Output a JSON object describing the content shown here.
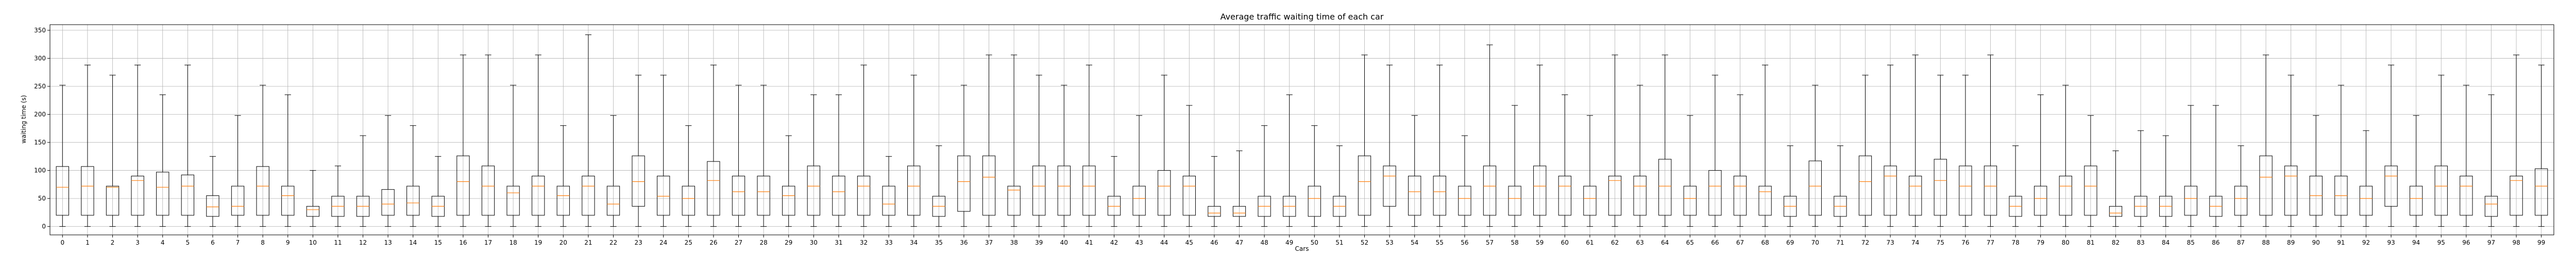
{
  "chart_data": {
    "type": "boxplot",
    "title": "Average traffic waiting time of each car",
    "xlabel": "Cars",
    "ylabel": "waiting time (s)",
    "ylim": [
      -15,
      360
    ],
    "yticks": [
      0,
      50,
      100,
      150,
      200,
      250,
      300,
      350
    ],
    "grid": true,
    "colors": {
      "box": "#000000",
      "median": "#ff7f0e",
      "grid": "#b0b0b0"
    },
    "categories": [
      "0",
      "1",
      "2",
      "3",
      "4",
      "5",
      "6",
      "7",
      "8",
      "9",
      "10",
      "11",
      "12",
      "13",
      "14",
      "15",
      "16",
      "17",
      "18",
      "19",
      "20",
      "21",
      "22",
      "23",
      "24",
      "25",
      "26",
      "27",
      "28",
      "29",
      "30",
      "31",
      "32",
      "33",
      "34",
      "35",
      "36",
      "37",
      "38",
      "39",
      "40",
      "41",
      "42",
      "43",
      "44",
      "45",
      "46",
      "47",
      "48",
      "49",
      "50",
      "51",
      "52",
      "53",
      "54",
      "55",
      "56",
      "57",
      "58",
      "59",
      "60",
      "61",
      "62",
      "63",
      "64",
      "65",
      "66",
      "67",
      "68",
      "69",
      "70",
      "71",
      "72",
      "73",
      "74",
      "75",
      "76",
      "77",
      "78",
      "79",
      "80",
      "81",
      "82",
      "83",
      "84",
      "85",
      "86",
      "87",
      "88",
      "89",
      "90",
      "91",
      "92",
      "93",
      "94",
      "95",
      "96",
      "97",
      "98",
      "99"
    ],
    "boxes": [
      {
        "x": "0",
        "whislo": 0,
        "q1": 20,
        "med": 70,
        "q3": 107,
        "whishi": 252
      },
      {
        "x": "1",
        "whislo": 0,
        "q1": 20,
        "med": 72,
        "q3": 107,
        "whishi": 288
      },
      {
        "x": "2",
        "whislo": 0,
        "q1": 20,
        "med": 70,
        "q3": 72,
        "whishi": 270
      },
      {
        "x": "3",
        "whislo": 0,
        "q1": 20,
        "med": 82,
        "q3": 90,
        "whishi": 288
      },
      {
        "x": "4",
        "whislo": 0,
        "q1": 20,
        "med": 70,
        "q3": 97,
        "whishi": 235
      },
      {
        "x": "5",
        "whislo": 0,
        "q1": 20,
        "med": 72,
        "q3": 92,
        "whishi": 288
      },
      {
        "x": "6",
        "whislo": 0,
        "q1": 18,
        "med": 35,
        "q3": 55,
        "whishi": 125
      },
      {
        "x": "7",
        "whislo": 0,
        "q1": 20,
        "med": 36,
        "q3": 72,
        "whishi": 198
      },
      {
        "x": "8",
        "whislo": 0,
        "q1": 20,
        "med": 72,
        "q3": 107,
        "whishi": 252
      },
      {
        "x": "9",
        "whislo": 0,
        "q1": 20,
        "med": 55,
        "q3": 72,
        "whishi": 235
      },
      {
        "x": "10",
        "whislo": 0,
        "q1": 18,
        "med": 30,
        "q3": 36,
        "whishi": 100
      },
      {
        "x": "11",
        "whislo": 0,
        "q1": 18,
        "med": 36,
        "q3": 54,
        "whishi": 108
      },
      {
        "x": "12",
        "whislo": 0,
        "q1": 18,
        "med": 36,
        "q3": 54,
        "whishi": 162
      },
      {
        "x": "13",
        "whislo": 0,
        "q1": 20,
        "med": 40,
        "q3": 66,
        "whishi": 198
      },
      {
        "x": "14",
        "whislo": 0,
        "q1": 20,
        "med": 42,
        "q3": 72,
        "whishi": 180
      },
      {
        "x": "15",
        "whislo": 0,
        "q1": 18,
        "med": 36,
        "q3": 54,
        "whishi": 125
      },
      {
        "x": "16",
        "whislo": 0,
        "q1": 20,
        "med": 80,
        "q3": 126,
        "whishi": 306
      },
      {
        "x": "17",
        "whislo": 0,
        "q1": 20,
        "med": 72,
        "q3": 108,
        "whishi": 306
      },
      {
        "x": "18",
        "whislo": 0,
        "q1": 20,
        "med": 60,
        "q3": 72,
        "whishi": 252
      },
      {
        "x": "19",
        "whislo": 0,
        "q1": 20,
        "med": 72,
        "q3": 90,
        "whishi": 306
      },
      {
        "x": "20",
        "whislo": 0,
        "q1": 20,
        "med": 55,
        "q3": 72,
        "whishi": 180
      },
      {
        "x": "21",
        "whislo": 0,
        "q1": 20,
        "med": 72,
        "q3": 90,
        "whishi": 342
      },
      {
        "x": "22",
        "whislo": 0,
        "q1": 20,
        "med": 40,
        "q3": 72,
        "whishi": 198
      },
      {
        "x": "23",
        "whislo": 0,
        "q1": 36,
        "med": 80,
        "q3": 126,
        "whishi": 270
      },
      {
        "x": "24",
        "whislo": 0,
        "q1": 20,
        "med": 54,
        "q3": 90,
        "whishi": 270
      },
      {
        "x": "25",
        "whislo": 0,
        "q1": 20,
        "med": 50,
        "q3": 72,
        "whishi": 180
      },
      {
        "x": "26",
        "whislo": 0,
        "q1": 20,
        "med": 82,
        "q3": 116,
        "whishi": 288
      },
      {
        "x": "27",
        "whislo": 0,
        "q1": 20,
        "med": 62,
        "q3": 90,
        "whishi": 252
      },
      {
        "x": "28",
        "whislo": 0,
        "q1": 20,
        "med": 62,
        "q3": 90,
        "whishi": 252
      },
      {
        "x": "29",
        "whislo": 0,
        "q1": 20,
        "med": 55,
        "q3": 72,
        "whishi": 162
      },
      {
        "x": "30",
        "whislo": 0,
        "q1": 20,
        "med": 72,
        "q3": 108,
        "whishi": 235
      },
      {
        "x": "31",
        "whislo": 0,
        "q1": 20,
        "med": 62,
        "q3": 90,
        "whishi": 235
      },
      {
        "x": "32",
        "whislo": 0,
        "q1": 20,
        "med": 72,
        "q3": 90,
        "whishi": 288
      },
      {
        "x": "33",
        "whislo": 0,
        "q1": 20,
        "med": 40,
        "q3": 72,
        "whishi": 125
      },
      {
        "x": "34",
        "whislo": 0,
        "q1": 20,
        "med": 72,
        "q3": 108,
        "whishi": 270
      },
      {
        "x": "35",
        "whislo": 0,
        "q1": 18,
        "med": 36,
        "q3": 54,
        "whishi": 144
      },
      {
        "x": "36",
        "whislo": 0,
        "q1": 27,
        "med": 80,
        "q3": 126,
        "whishi": 252
      },
      {
        "x": "37",
        "whislo": 0,
        "q1": 20,
        "med": 88,
        "q3": 126,
        "whishi": 306
      },
      {
        "x": "38",
        "whislo": 0,
        "q1": 20,
        "med": 65,
        "q3": 72,
        "whishi": 306
      },
      {
        "x": "39",
        "whislo": 0,
        "q1": 20,
        "med": 72,
        "q3": 108,
        "whishi": 270
      },
      {
        "x": "40",
        "whislo": 0,
        "q1": 20,
        "med": 72,
        "q3": 108,
        "whishi": 252
      },
      {
        "x": "41",
        "whislo": 0,
        "q1": 20,
        "med": 72,
        "q3": 108,
        "whishi": 288
      },
      {
        "x": "42",
        "whislo": 0,
        "q1": 20,
        "med": 36,
        "q3": 54,
        "whishi": 125
      },
      {
        "x": "43",
        "whislo": 0,
        "q1": 20,
        "med": 50,
        "q3": 72,
        "whishi": 198
      },
      {
        "x": "44",
        "whislo": 0,
        "q1": 20,
        "med": 72,
        "q3": 100,
        "whishi": 270
      },
      {
        "x": "45",
        "whislo": 0,
        "q1": 20,
        "med": 72,
        "q3": 90,
        "whishi": 216
      },
      {
        "x": "46",
        "whislo": 0,
        "q1": 18,
        "med": 24,
        "q3": 36,
        "whishi": 125
      },
      {
        "x": "47",
        "whislo": 0,
        "q1": 18,
        "med": 24,
        "q3": 36,
        "whishi": 135
      },
      {
        "x": "48",
        "whislo": 0,
        "q1": 18,
        "med": 36,
        "q3": 54,
        "whishi": 180
      },
      {
        "x": "49",
        "whislo": 0,
        "q1": 18,
        "med": 36,
        "q3": 54,
        "whishi": 235
      },
      {
        "x": "50",
        "whislo": 0,
        "q1": 18,
        "med": 50,
        "q3": 72,
        "whishi": 180
      },
      {
        "x": "51",
        "whislo": 0,
        "q1": 18,
        "med": 36,
        "q3": 54,
        "whishi": 144
      },
      {
        "x": "52",
        "whislo": 0,
        "q1": 20,
        "med": 80,
        "q3": 126,
        "whishi": 306
      },
      {
        "x": "53",
        "whislo": 0,
        "q1": 36,
        "med": 90,
        "q3": 108,
        "whishi": 288
      },
      {
        "x": "54",
        "whislo": 0,
        "q1": 20,
        "med": 62,
        "q3": 90,
        "whishi": 198
      },
      {
        "x": "55",
        "whislo": 0,
        "q1": 20,
        "med": 62,
        "q3": 90,
        "whishi": 288
      },
      {
        "x": "56",
        "whislo": 0,
        "q1": 20,
        "med": 50,
        "q3": 72,
        "whishi": 162
      },
      {
        "x": "57",
        "whislo": 0,
        "q1": 20,
        "med": 72,
        "q3": 108,
        "whishi": 324
      },
      {
        "x": "58",
        "whislo": 0,
        "q1": 20,
        "med": 50,
        "q3": 72,
        "whishi": 216
      },
      {
        "x": "59",
        "whislo": 0,
        "q1": 20,
        "med": 72,
        "q3": 108,
        "whishi": 288
      },
      {
        "x": "60",
        "whislo": 0,
        "q1": 20,
        "med": 72,
        "q3": 90,
        "whishi": 235
      },
      {
        "x": "61",
        "whislo": 0,
        "q1": 20,
        "med": 50,
        "q3": 72,
        "whishi": 198
      },
      {
        "x": "62",
        "whislo": 0,
        "q1": 20,
        "med": 82,
        "q3": 90,
        "whishi": 306
      },
      {
        "x": "63",
        "whislo": 0,
        "q1": 20,
        "med": 72,
        "q3": 90,
        "whishi": 252
      },
      {
        "x": "64",
        "whislo": 0,
        "q1": 20,
        "med": 72,
        "q3": 120,
        "whishi": 306
      },
      {
        "x": "65",
        "whislo": 0,
        "q1": 20,
        "med": 50,
        "q3": 72,
        "whishi": 198
      },
      {
        "x": "66",
        "whislo": 0,
        "q1": 20,
        "med": 72,
        "q3": 100,
        "whishi": 270
      },
      {
        "x": "67",
        "whislo": 0,
        "q1": 20,
        "med": 72,
        "q3": 90,
        "whishi": 235
      },
      {
        "x": "68",
        "whislo": 0,
        "q1": 20,
        "med": 62,
        "q3": 72,
        "whishi": 288
      },
      {
        "x": "69",
        "whislo": 0,
        "q1": 18,
        "med": 36,
        "q3": 54,
        "whishi": 144
      },
      {
        "x": "70",
        "whislo": 0,
        "q1": 20,
        "med": 72,
        "q3": 117,
        "whishi": 252
      },
      {
        "x": "71",
        "whislo": 0,
        "q1": 18,
        "med": 36,
        "q3": 54,
        "whishi": 144
      },
      {
        "x": "72",
        "whislo": 0,
        "q1": 20,
        "med": 80,
        "q3": 126,
        "whishi": 270
      },
      {
        "x": "73",
        "whislo": 0,
        "q1": 20,
        "med": 90,
        "q3": 108,
        "whishi": 288
      },
      {
        "x": "74",
        "whislo": 0,
        "q1": 20,
        "med": 72,
        "q3": 90,
        "whishi": 306
      },
      {
        "x": "75",
        "whislo": 0,
        "q1": 20,
        "med": 82,
        "q3": 120,
        "whishi": 270
      },
      {
        "x": "76",
        "whislo": 0,
        "q1": 20,
        "med": 72,
        "q3": 108,
        "whishi": 270
      },
      {
        "x": "77",
        "whislo": 0,
        "q1": 20,
        "med": 72,
        "q3": 108,
        "whishi": 306
      },
      {
        "x": "78",
        "whislo": 0,
        "q1": 18,
        "med": 36,
        "q3": 54,
        "whishi": 144
      },
      {
        "x": "79",
        "whislo": 0,
        "q1": 20,
        "med": 50,
        "q3": 72,
        "whishi": 235
      },
      {
        "x": "80",
        "whislo": 0,
        "q1": 20,
        "med": 72,
        "q3": 90,
        "whishi": 252
      },
      {
        "x": "81",
        "whislo": 0,
        "q1": 20,
        "med": 72,
        "q3": 108,
        "whishi": 198
      },
      {
        "x": "82",
        "whislo": 0,
        "q1": 18,
        "med": 24,
        "q3": 36,
        "whishi": 135
      },
      {
        "x": "83",
        "whislo": 0,
        "q1": 18,
        "med": 36,
        "q3": 54,
        "whishi": 171
      },
      {
        "x": "84",
        "whislo": 0,
        "q1": 18,
        "med": 36,
        "q3": 54,
        "whishi": 162
      },
      {
        "x": "85",
        "whislo": 0,
        "q1": 20,
        "med": 50,
        "q3": 72,
        "whishi": 216
      },
      {
        "x": "86",
        "whislo": 0,
        "q1": 18,
        "med": 36,
        "q3": 54,
        "whishi": 216
      },
      {
        "x": "87",
        "whislo": 0,
        "q1": 20,
        "med": 50,
        "q3": 72,
        "whishi": 144
      },
      {
        "x": "88",
        "whislo": 0,
        "q1": 20,
        "med": 88,
        "q3": 126,
        "whishi": 306
      },
      {
        "x": "89",
        "whislo": 0,
        "q1": 20,
        "med": 90,
        "q3": 108,
        "whishi": 270
      },
      {
        "x": "90",
        "whislo": 0,
        "q1": 20,
        "med": 55,
        "q3": 90,
        "whishi": 198
      },
      {
        "x": "91",
        "whislo": 0,
        "q1": 20,
        "med": 55,
        "q3": 90,
        "whishi": 252
      },
      {
        "x": "92",
        "whislo": 0,
        "q1": 20,
        "med": 50,
        "q3": 72,
        "whishi": 171
      },
      {
        "x": "93",
        "whislo": 0,
        "q1": 36,
        "med": 90,
        "q3": 108,
        "whishi": 288
      },
      {
        "x": "94",
        "whislo": 0,
        "q1": 20,
        "med": 50,
        "q3": 72,
        "whishi": 198
      },
      {
        "x": "95",
        "whislo": 0,
        "q1": 20,
        "med": 72,
        "q3": 108,
        "whishi": 270
      },
      {
        "x": "96",
        "whislo": 0,
        "q1": 20,
        "med": 72,
        "q3": 90,
        "whishi": 252
      },
      {
        "x": "97",
        "whislo": 0,
        "q1": 18,
        "med": 40,
        "q3": 54,
        "whishi": 235
      },
      {
        "x": "98",
        "whislo": 0,
        "q1": 20,
        "med": 82,
        "q3": 90,
        "whishi": 306
      },
      {
        "x": "99",
        "whislo": 0,
        "q1": 20,
        "med": 72,
        "q3": 103,
        "whishi": 288
      }
    ]
  }
}
